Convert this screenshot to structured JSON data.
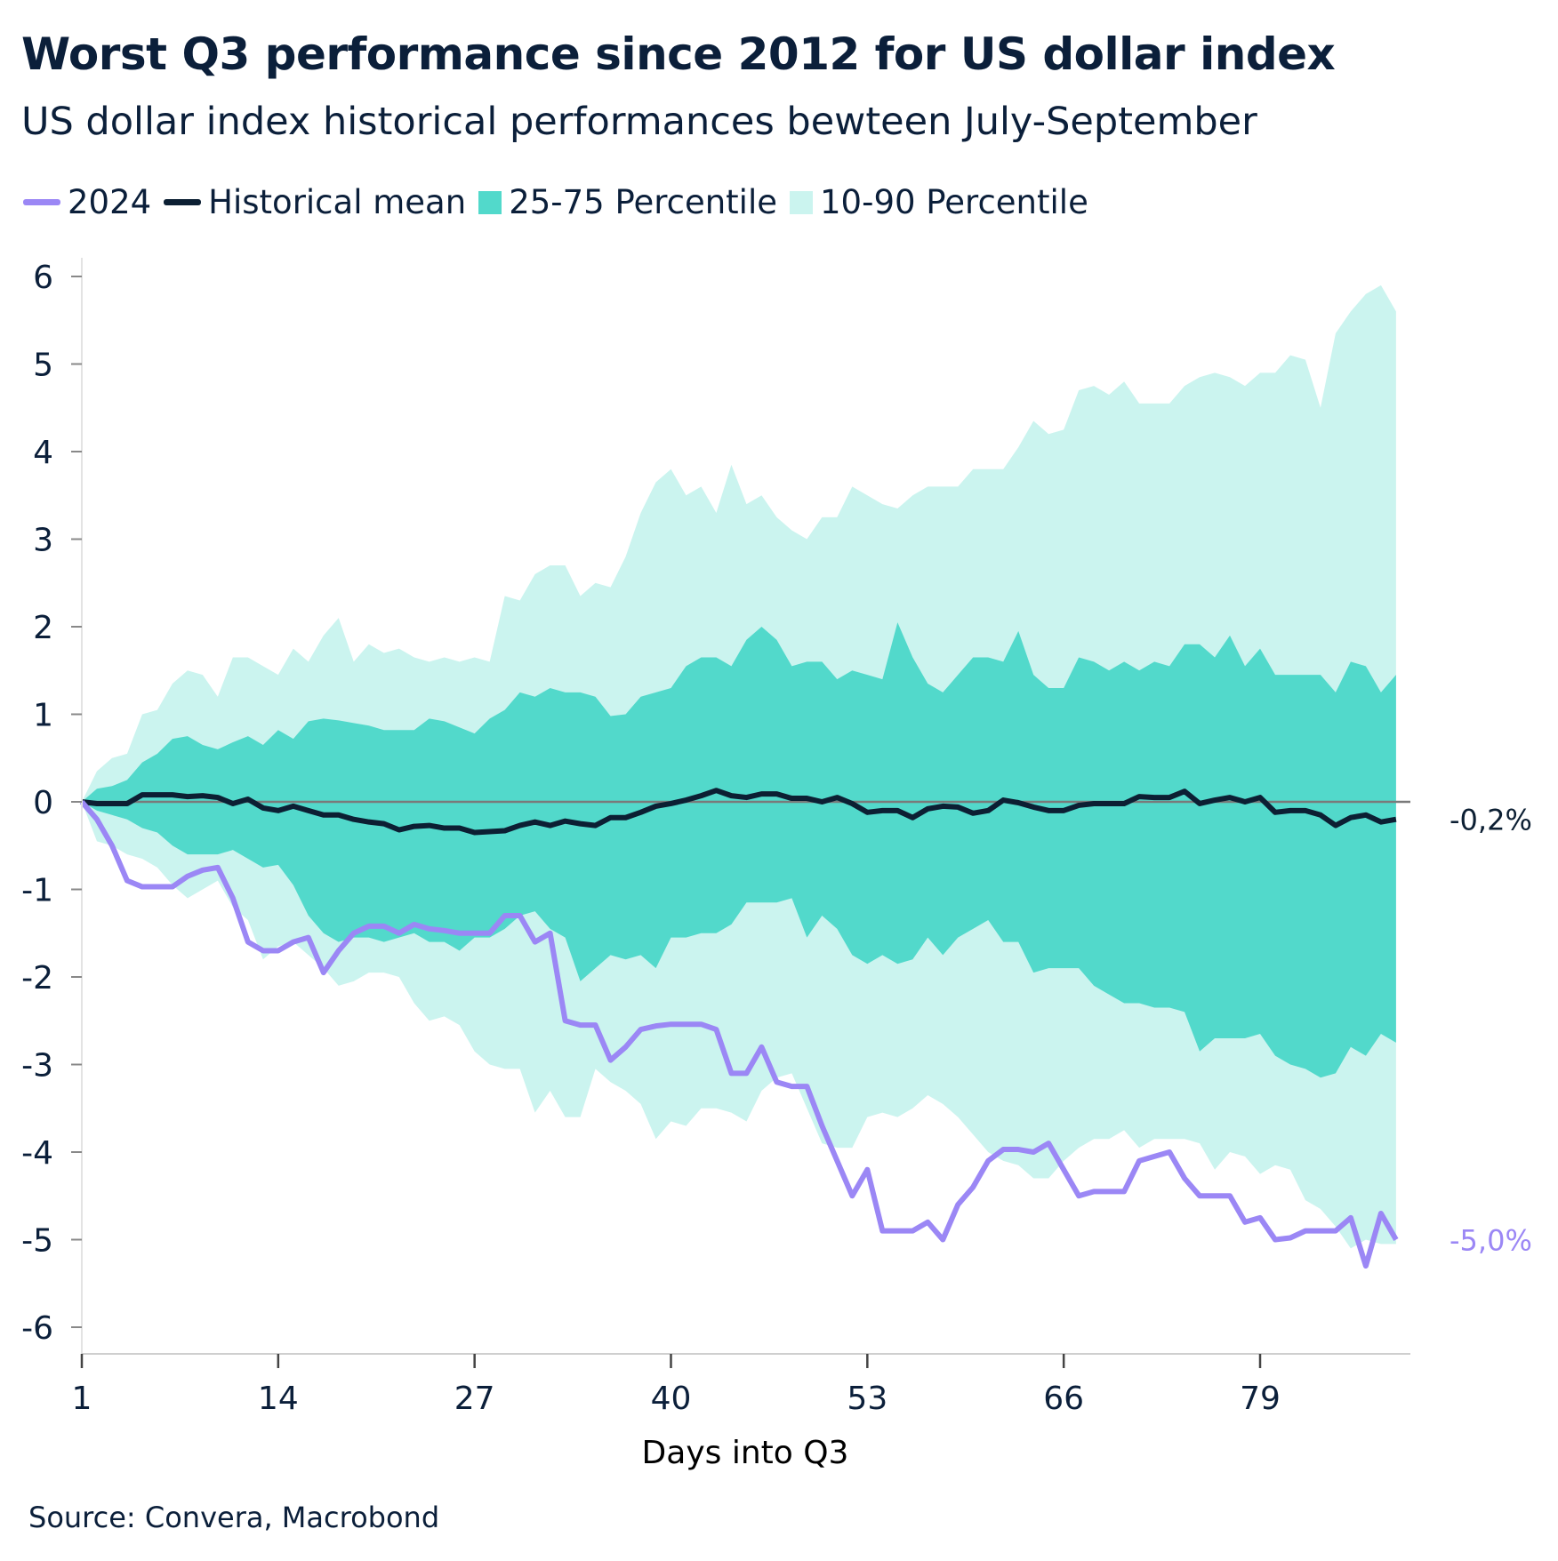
{
  "header": {
    "title": "Worst Q3 performance since 2012 for US dollar index",
    "subtitle": "US dollar index historical performances bewteen July-September"
  },
  "footer": {
    "source": "Source: Convera, Macrobond"
  },
  "colors": {
    "y2024": "#9b87f5",
    "mean": "#0c1f33",
    "p25_75": "#52d9cb",
    "p10_90": "#cbf4ef",
    "zero_line": "#7a7a7a",
    "text": "#0b1f3a"
  },
  "chart_data": {
    "type": "area",
    "title": "Worst Q3 performance since 2012 for US dollar index",
    "subtitle": "US dollar index historical performances bewteen July-September",
    "xlabel": "Days into Q3",
    "ylabel": "",
    "xlim": [
      1,
      88
    ],
    "ylim": [
      -6,
      6
    ],
    "x_ticks": [
      "1",
      "14",
      "27",
      "40",
      "53",
      "66",
      "79"
    ],
    "y_ticks": [
      "6",
      "5",
      "4",
      "3",
      "2",
      "1",
      "0",
      "-1",
      "-2",
      "-3",
      "-4",
      "-5",
      "-6"
    ],
    "grid": false,
    "legend_position": "top-left",
    "legend": [
      "2024",
      "Historical mean",
      "25-75 Percentile",
      "10-90 Percentile"
    ],
    "end_labels": {
      "mean": "-0,2%",
      "y2024": "-5,0%"
    },
    "series": [
      {
        "name": "2024",
        "type": "line",
        "values": [
          0,
          -0.2,
          -0.5,
          -0.9,
          -0.97,
          -0.97,
          -0.97,
          -0.85,
          -0.78,
          -0.75,
          -1.1,
          -1.6,
          -1.7,
          -1.7,
          -1.6,
          -1.55,
          -1.95,
          -1.7,
          -1.5,
          -1.42,
          -1.42,
          -1.5,
          -1.4,
          -1.45,
          -1.47,
          -1.5,
          -1.5,
          -1.5,
          -1.3,
          -1.3,
          -1.6,
          -1.5,
          -2.5,
          -2.55,
          -2.55,
          -2.95,
          -2.8,
          -2.6,
          -2.56,
          -2.54,
          -2.54,
          -2.54,
          -2.6,
          -3.1,
          -3.1,
          -2.8,
          -3.2,
          -3.25,
          -3.25,
          -3.7,
          -4.1,
          -4.5,
          -4.2,
          -4.9,
          -4.9,
          -4.9,
          -4.8,
          -5.0,
          -4.6,
          -4.4,
          -4.1,
          -3.97,
          -3.97,
          -4.0,
          -3.9,
          -4.2,
          -4.5,
          -4.45,
          -4.45,
          -4.45,
          -4.1,
          -4.05,
          -4.0,
          -4.3,
          -4.5,
          -4.5,
          -4.5,
          -4.8,
          -4.75,
          -5.0,
          -4.98,
          -4.9,
          -4.9,
          -4.9,
          -4.75,
          -5.3,
          -4.7,
          -5.0
        ]
      },
      {
        "name": "Historical mean",
        "type": "line",
        "values": [
          0,
          -0.02,
          -0.02,
          -0.02,
          0.08,
          0.08,
          0.08,
          0.06,
          0.07,
          0.05,
          -0.02,
          0.03,
          -0.07,
          -0.1,
          -0.05,
          -0.1,
          -0.15,
          -0.15,
          -0.2,
          -0.23,
          -0.25,
          -0.32,
          -0.28,
          -0.27,
          -0.3,
          -0.3,
          -0.35,
          -0.34,
          -0.33,
          -0.27,
          -0.23,
          -0.27,
          -0.22,
          -0.25,
          -0.27,
          -0.18,
          -0.18,
          -0.12,
          -0.05,
          -0.02,
          0.02,
          0.07,
          0.13,
          0.07,
          0.05,
          0.09,
          0.09,
          0.04,
          0.04,
          0.0,
          0.05,
          -0.02,
          -0.12,
          -0.1,
          -0.1,
          -0.18,
          -0.08,
          -0.05,
          -0.06,
          -0.13,
          -0.1,
          0.02,
          -0.01,
          -0.06,
          -0.1,
          -0.1,
          -0.04,
          -0.02,
          -0.02,
          -0.02,
          0.06,
          0.05,
          0.05,
          0.12,
          -0.02,
          0.02,
          0.05,
          0.0,
          0.05,
          -0.12,
          -0.1,
          -0.1,
          -0.15,
          -0.27,
          -0.18,
          -0.15,
          -0.23,
          -0.2
        ]
      },
      {
        "name": "25-75 Percentile",
        "type": "band",
        "lower": [
          0,
          -0.1,
          -0.15,
          -0.2,
          -0.3,
          -0.35,
          -0.5,
          -0.6,
          -0.6,
          -0.6,
          -0.55,
          -0.65,
          -0.75,
          -0.72,
          -0.95,
          -1.3,
          -1.5,
          -1.6,
          -1.55,
          -1.55,
          -1.6,
          -1.55,
          -1.5,
          -1.6,
          -1.6,
          -1.7,
          -1.55,
          -1.55,
          -1.45,
          -1.3,
          -1.25,
          -1.45,
          -1.55,
          -2.05,
          -1.9,
          -1.75,
          -1.8,
          -1.75,
          -1.9,
          -1.55,
          -1.55,
          -1.5,
          -1.5,
          -1.4,
          -1.15,
          -1.15,
          -1.15,
          -1.1,
          -1.55,
          -1.3,
          -1.45,
          -1.75,
          -1.85,
          -1.75,
          -1.85,
          -1.8,
          -1.55,
          -1.75,
          -1.55,
          -1.45,
          -1.35,
          -1.6,
          -1.6,
          -1.95,
          -1.9,
          -1.9,
          -1.9,
          -2.1,
          -2.2,
          -2.3,
          -2.3,
          -2.35,
          -2.35,
          -2.4,
          -2.85,
          -2.7,
          -2.7,
          -2.7,
          -2.65,
          -2.9,
          -3.0,
          -3.05,
          -3.15,
          -3.1,
          -2.8,
          -2.9,
          -2.65,
          -2.75
        ],
        "upper": [
          0,
          0.15,
          0.18,
          0.25,
          0.45,
          0.55,
          0.72,
          0.75,
          0.65,
          0.6,
          0.68,
          0.75,
          0.65,
          0.82,
          0.72,
          0.92,
          0.95,
          0.93,
          0.9,
          0.87,
          0.82,
          0.82,
          0.82,
          0.95,
          0.92,
          0.85,
          0.78,
          0.95,
          1.05,
          1.25,
          1.2,
          1.3,
          1.25,
          1.25,
          1.2,
          0.98,
          1.0,
          1.2,
          1.25,
          1.3,
          1.55,
          1.65,
          1.65,
          1.55,
          1.85,
          2.0,
          1.85,
          1.55,
          1.6,
          1.6,
          1.4,
          1.5,
          1.45,
          1.4,
          2.05,
          1.65,
          1.35,
          1.25,
          1.45,
          1.65,
          1.65,
          1.6,
          1.95,
          1.45,
          1.3,
          1.3,
          1.65,
          1.6,
          1.5,
          1.6,
          1.5,
          1.6,
          1.55,
          1.8,
          1.8,
          1.65,
          1.9,
          1.55,
          1.75,
          1.45,
          1.45,
          1.45,
          1.45,
          1.25,
          1.6,
          1.55,
          1.25,
          1.45
        ]
      },
      {
        "name": "10-90 Percentile",
        "type": "band",
        "lower": [
          0,
          -0.45,
          -0.5,
          -0.6,
          -0.65,
          -0.75,
          -0.95,
          -1.1,
          -1.0,
          -0.9,
          -1.2,
          -1.35,
          -1.8,
          -1.65,
          -1.6,
          -1.75,
          -1.9,
          -2.1,
          -2.05,
          -1.95,
          -1.95,
          -2.0,
          -2.3,
          -2.5,
          -2.45,
          -2.55,
          -2.85,
          -3.0,
          -3.05,
          -3.05,
          -3.55,
          -3.3,
          -3.6,
          -3.6,
          -3.05,
          -3.2,
          -3.3,
          -3.45,
          -3.85,
          -3.65,
          -3.7,
          -3.5,
          -3.5,
          -3.55,
          -3.65,
          -3.3,
          -3.15,
          -3.1,
          -3.5,
          -3.9,
          -3.95,
          -3.95,
          -3.6,
          -3.55,
          -3.6,
          -3.5,
          -3.35,
          -3.45,
          -3.6,
          -3.8,
          -4.0,
          -4.1,
          -4.15,
          -4.3,
          -4.3,
          -4.1,
          -3.95,
          -3.85,
          -3.85,
          -3.75,
          -3.95,
          -3.85,
          -3.85,
          -3.85,
          -3.9,
          -4.2,
          -4.0,
          -4.05,
          -4.25,
          -4.15,
          -4.2,
          -4.55,
          -4.65,
          -4.85,
          -5.1,
          -5.0,
          -5.05,
          -5.05
        ],
        "upper": [
          0,
          0.35,
          0.5,
          0.55,
          1.0,
          1.05,
          1.35,
          1.5,
          1.45,
          1.2,
          1.65,
          1.65,
          1.55,
          1.45,
          1.75,
          1.6,
          1.9,
          2.1,
          1.6,
          1.8,
          1.7,
          1.75,
          1.65,
          1.6,
          1.65,
          1.6,
          1.65,
          1.6,
          2.35,
          2.3,
          2.6,
          2.7,
          2.7,
          2.35,
          2.5,
          2.45,
          2.8,
          3.3,
          3.65,
          3.8,
          3.5,
          3.6,
          3.3,
          3.85,
          3.4,
          3.5,
          3.25,
          3.1,
          3.0,
          3.25,
          3.25,
          3.6,
          3.5,
          3.4,
          3.35,
          3.5,
          3.6,
          3.6,
          3.6,
          3.8,
          3.8,
          3.8,
          4.05,
          4.35,
          4.2,
          4.25,
          4.7,
          4.75,
          4.65,
          4.8,
          4.55,
          4.55,
          4.55,
          4.75,
          4.85,
          4.9,
          4.85,
          4.75,
          4.9,
          4.9,
          5.1,
          5.05,
          4.5,
          5.35,
          5.6,
          5.8,
          5.9,
          5.6
        ]
      }
    ]
  }
}
